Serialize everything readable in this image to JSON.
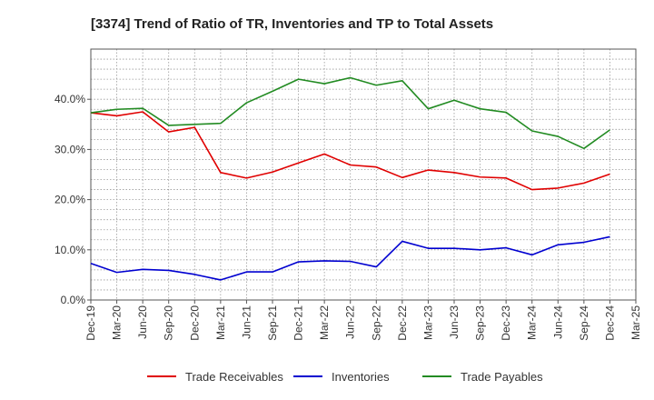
{
  "chart_data": {
    "type": "line",
    "title": "[3374]  Trend of Ratio of TR, Inventories and TP to Total Assets",
    "xlabel": "",
    "ylabel": "",
    "x": [
      "Dec-19",
      "Mar-20",
      "Jun-20",
      "Sep-20",
      "Dec-20",
      "Mar-21",
      "Jun-21",
      "Sep-21",
      "Dec-21",
      "Mar-22",
      "Jun-22",
      "Sep-22",
      "Dec-22",
      "Mar-23",
      "Jun-23",
      "Sep-23",
      "Dec-23",
      "Mar-24",
      "Jun-24",
      "Sep-24",
      "Dec-24",
      "Mar-25"
    ],
    "ylim": [
      0,
      50
    ],
    "yticks": [
      0,
      10,
      20,
      30,
      40
    ],
    "ytick_labels": [
      "0.0%",
      "10.0%",
      "20.0%",
      "30.0%",
      "40.0%"
    ],
    "grid": true,
    "legend_position": "bottom",
    "series": [
      {
        "name": "Trade Receivables",
        "color": "#e00000",
        "values": [
          37.3,
          36.7,
          37.5,
          33.5,
          34.4,
          25.4,
          24.3,
          25.5,
          27.3,
          29.1,
          26.9,
          26.5,
          24.4,
          25.9,
          25.4,
          24.5,
          24.3,
          22.0,
          22.3,
          23.3,
          25.1,
          null
        ]
      },
      {
        "name": "Inventories",
        "color": "#0000d0",
        "values": [
          7.3,
          5.5,
          6.1,
          5.9,
          5.1,
          4.0,
          5.6,
          5.6,
          7.6,
          7.8,
          7.7,
          6.6,
          11.7,
          10.3,
          10.3,
          10.0,
          10.4,
          9.0,
          11.0,
          11.5,
          12.6,
          null
        ]
      },
      {
        "name": "Trade Payables",
        "color": "#228b22",
        "values": [
          37.3,
          38.0,
          38.2,
          34.8,
          35.0,
          35.2,
          39.3,
          41.6,
          44.0,
          43.1,
          44.3,
          42.8,
          43.7,
          38.1,
          39.8,
          38.1,
          37.4,
          33.7,
          32.6,
          30.2,
          33.9,
          null
        ]
      }
    ]
  }
}
